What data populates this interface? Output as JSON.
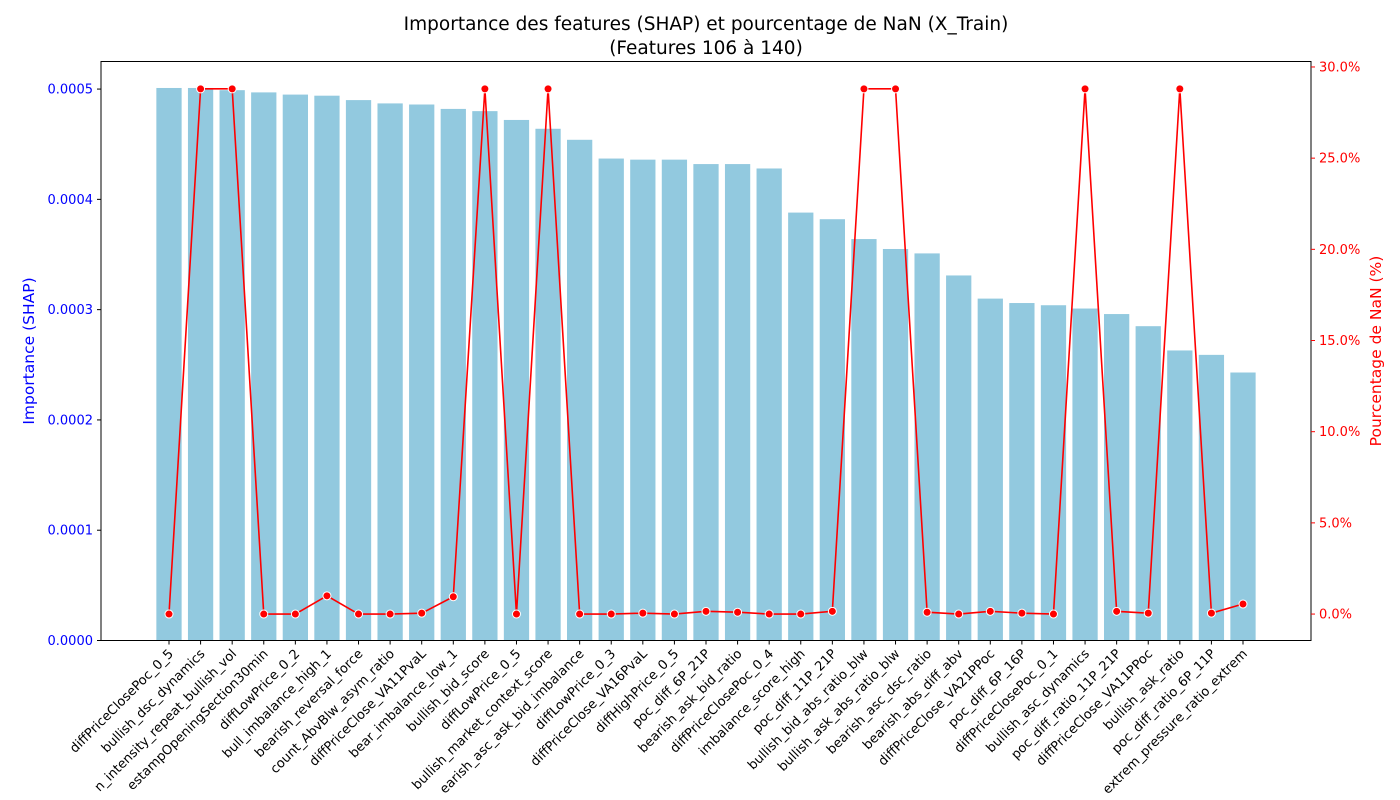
{
  "chart_data": {
    "type": "bar",
    "title": "Importance des features (SHAP) et pourcentage de NaN (X_Train)",
    "subtitle": "(Features 106 à 140)",
    "ylabel": "Importance (SHAP)",
    "y2label": "Pourcentage de NaN (%)",
    "ylim": [
      0,
      0.000525
    ],
    "y2lim": [
      -1.45,
      30.3
    ],
    "y_ticks": [
      "0.0000",
      "0.0001",
      "0.0002",
      "0.0003",
      "0.0004",
      "0.0005"
    ],
    "y2_ticks": [
      "0.0%",
      "5.0%",
      "10.0%",
      "15.0%",
      "20.0%",
      "25.0%",
      "30.0%"
    ],
    "grid": false,
    "colors": {
      "bars": "#92c9df",
      "line": "#ff0000",
      "left_axis": "#0000ff",
      "right_axis": "#ff0000"
    },
    "categories": [
      "diffPriceClosePoc_0_5",
      "bullish_dsc_dynamics",
      "n_intensity_repeat_bullish_vol",
      "estampOpeningSection30min",
      "diffLowPrice_0_2",
      "bull_imbalance_high_1",
      "bearish_reversal_force",
      "count_AbvBlw_asym_ratio",
      "diffPriceClose_VA11PvaL",
      "bear_imbalance_low_1",
      "bullish_bid_score",
      "diffLowPrice_0_5",
      "bullish_market_context_score",
      "earish_asc_ask_bid_imbalance",
      "diffLowPrice_0_3",
      "diffPriceClose_VA16PvaL",
      "diffHighPrice_0_5",
      "poc_diff_6P_21P",
      "bearish_ask_bid_ratio",
      "diffPriceClosePoc_0_4",
      "imbalance_score_high",
      "poc_diff_11P_21P",
      "bullish_bid_abs_ratio_blw",
      "bullish_ask_abs_ratio_blw",
      "bearish_asc_dsc_ratio",
      "bearish_abs_diff_abv",
      "diffPriceClose_VA21PPoc",
      "poc_diff_6P_16P",
      "diffPriceClosePoc_0_1",
      "bullish_asc_dynamics",
      "poc_diff_ratio_11P_21P",
      "diffPriceClose_VA11PPoc",
      "bullish_ask_ratio",
      "poc_diff_ratio_6P_11P",
      "extrem_pressure_ratio_extrem"
    ],
    "series": [
      {
        "name": "",
        "type": "bar",
        "axis": "left",
        "values": [
          0.000501,
          0.000501,
          0.000499,
          0.000497,
          0.000495,
          0.000494,
          0.00049,
          0.000487,
          0.000486,
          0.000482,
          0.00048,
          0.000472,
          0.000464,
          0.000454,
          0.000437,
          0.000436,
          0.000436,
          0.000432,
          0.000432,
          0.000428,
          0.000388,
          0.000382,
          0.000364,
          0.000355,
          0.000351,
          0.000331,
          0.00031,
          0.000306,
          0.000304,
          0.000301,
          0.000296,
          0.000285,
          0.000263,
          0.000259,
          0.000243
        ]
      },
      {
        "name": "",
        "type": "line",
        "axis": "right",
        "values": [
          0.0,
          28.8,
          28.8,
          0.0,
          0.0,
          1.0,
          0.0,
          0.0,
          0.05,
          0.95,
          28.8,
          0.0,
          28.8,
          0.0,
          0.0,
          0.05,
          0.0,
          0.15,
          0.1,
          0.0,
          0.0,
          0.15,
          28.8,
          28.8,
          0.1,
          0.0,
          0.15,
          0.05,
          0.0,
          28.8,
          0.15,
          0.05,
          28.8,
          0.05,
          0.55
        ]
      }
    ]
  }
}
